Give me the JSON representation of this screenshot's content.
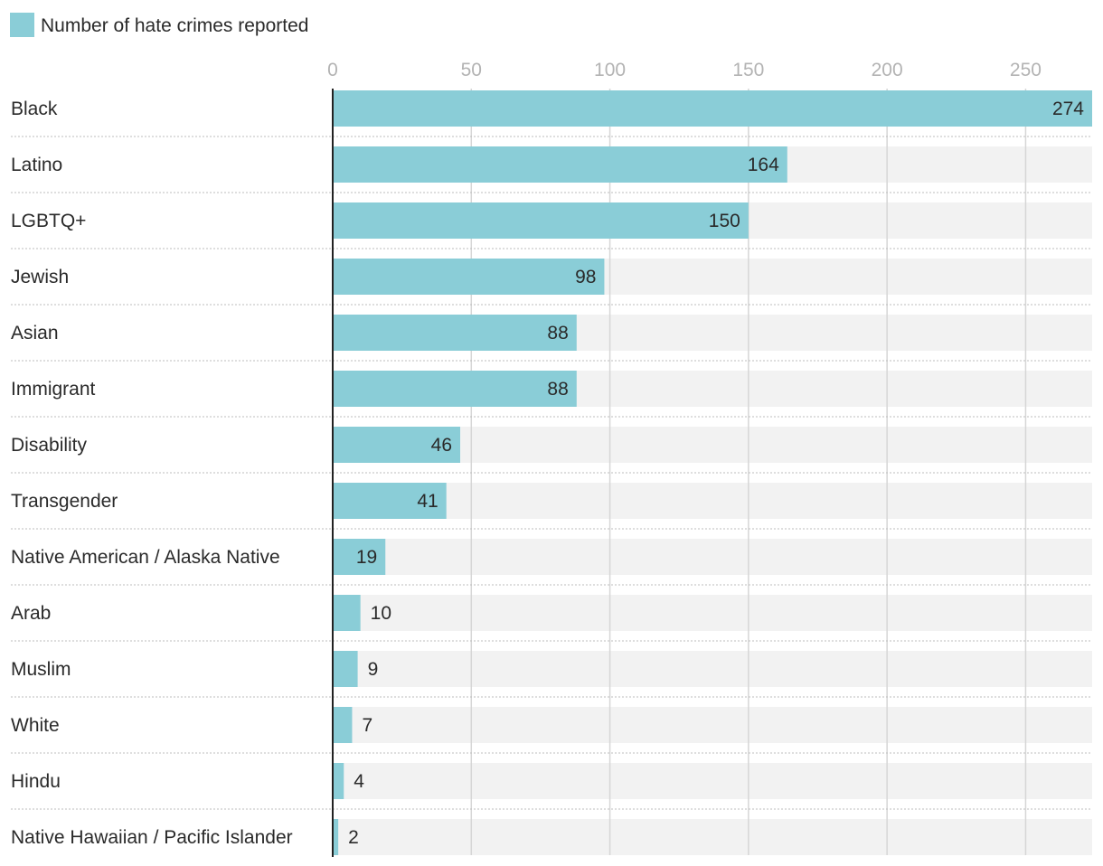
{
  "chart_data": {
    "type": "bar",
    "orientation": "horizontal",
    "legend": [
      {
        "label": "Number of hate crimes reported",
        "color": "#8acdd7"
      }
    ],
    "categories": [
      "Black",
      "Latino",
      "LGBTQ+",
      "Jewish",
      "Asian",
      "Immigrant",
      "Disability",
      "Transgender",
      "Native American / Alaska Native",
      "Arab",
      "Muslim",
      "White",
      "Hindu",
      "Native Hawaiian / Pacific Islander"
    ],
    "values": [
      274,
      164,
      150,
      98,
      88,
      88,
      46,
      41,
      19,
      10,
      9,
      7,
      4,
      2
    ],
    "xlim": [
      0,
      274
    ],
    "xticks": [
      0,
      50,
      100,
      150,
      200,
      250
    ],
    "xlabel": "",
    "ylabel": "",
    "grid": true,
    "legend_position": "top-left",
    "colors": {
      "bar": "#8acdd7",
      "track": "#f2f2f2",
      "grid": "#d6d6d6",
      "separator": "#bdbdbd",
      "axis": "#222222",
      "tick_label": "#b3b3b3",
      "text": "#2a2a2a"
    }
  }
}
